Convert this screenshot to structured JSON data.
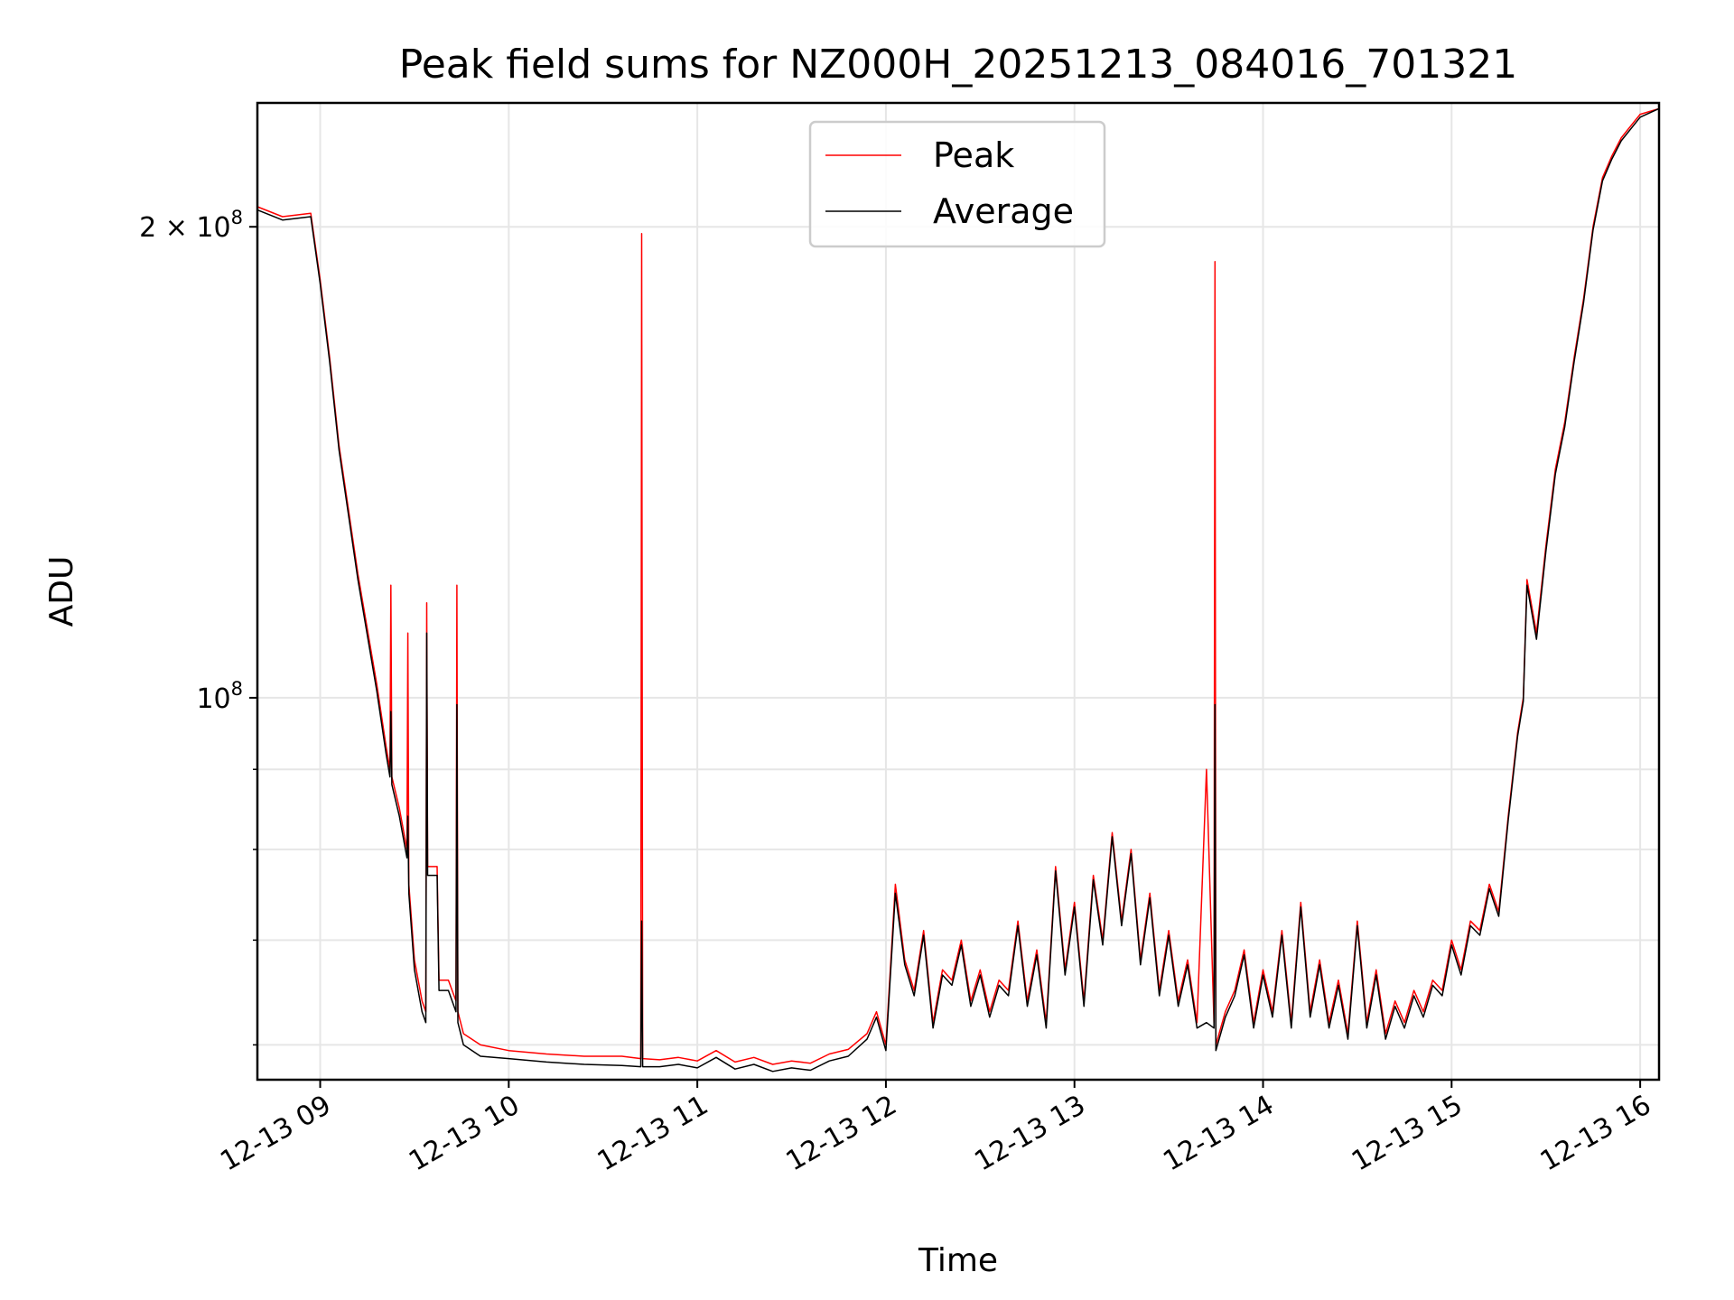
{
  "chart_data": {
    "type": "line",
    "title": "Peak field sums for NZ000H_20251213_084016_701321",
    "xlabel": "Time",
    "ylabel": "ADU",
    "yscale": "log",
    "ylim": [
      57000000,
      240000000
    ],
    "xlim": [
      8.667,
      16.1
    ],
    "grid": true,
    "legend_position": "top-center",
    "x_ticks": [
      {
        "value": 9,
        "label": "12-13 09"
      },
      {
        "value": 10,
        "label": "12-13 10"
      },
      {
        "value": 11,
        "label": "12-13 11"
      },
      {
        "value": 12,
        "label": "12-13 12"
      },
      {
        "value": 13,
        "label": "12-13 13"
      },
      {
        "value": 14,
        "label": "12-13 14"
      },
      {
        "value": 15,
        "label": "12-13 15"
      },
      {
        "value": 16,
        "label": "12-13 16"
      }
    ],
    "y_ticks": [
      {
        "value": 200000000,
        "base": "2 × 10",
        "exp": "8"
      },
      {
        "value": 100000000,
        "base": "10",
        "exp": "8"
      }
    ],
    "y_minor_ticks": [
      60000000,
      70000000,
      80000000,
      90000000
    ],
    "series": [
      {
        "name": "Peak",
        "color": "#ff0000",
        "x": [
          8.667,
          8.8,
          8.95,
          9.0,
          9.05,
          9.1,
          9.2,
          9.3,
          9.35,
          9.37,
          9.375,
          9.38,
          9.42,
          9.46,
          9.465,
          9.47,
          9.5,
          9.54,
          9.56,
          9.565,
          9.57,
          9.62,
          9.63,
          9.68,
          9.72,
          9.725,
          9.73,
          9.76,
          9.85,
          10.0,
          10.2,
          10.4,
          10.6,
          10.7,
          10.705,
          10.71,
          10.8,
          10.9,
          11.0,
          11.1,
          11.2,
          11.3,
          11.4,
          11.5,
          11.6,
          11.7,
          11.8,
          11.9,
          11.95,
          12.0,
          12.05,
          12.1,
          12.15,
          12.2,
          12.25,
          12.3,
          12.35,
          12.4,
          12.45,
          12.5,
          12.55,
          12.6,
          12.65,
          12.7,
          12.75,
          12.8,
          12.85,
          12.9,
          12.95,
          13.0,
          13.05,
          13.1,
          13.15,
          13.2,
          13.25,
          13.3,
          13.35,
          13.4,
          13.45,
          13.5,
          13.55,
          13.6,
          13.65,
          13.7,
          13.74,
          13.745,
          13.75,
          13.8,
          13.85,
          13.9,
          13.95,
          14.0,
          14.05,
          14.1,
          14.15,
          14.2,
          14.25,
          14.3,
          14.35,
          14.4,
          14.45,
          14.5,
          14.55,
          14.6,
          14.65,
          14.7,
          14.75,
          14.8,
          14.85,
          14.9,
          14.95,
          15.0,
          15.05,
          15.1,
          15.15,
          15.2,
          15.25,
          15.3,
          15.35,
          15.38,
          15.4,
          15.45,
          15.5,
          15.55,
          15.6,
          15.65,
          15.7,
          15.75,
          15.8,
          15.85,
          15.9,
          15.95,
          16.0,
          16.1
        ],
        "values": [
          206000000,
          203000000,
          204000000,
          185000000,
          165000000,
          145000000,
          120000000,
          102000000,
          93000000,
          90000000,
          118000000,
          89000000,
          85000000,
          80000000,
          110000000,
          76000000,
          68000000,
          64000000,
          63000000,
          115000000,
          78000000,
          78000000,
          66000000,
          66000000,
          64000000,
          118000000,
          63000000,
          61000000,
          60000000,
          59500000,
          59200000,
          59000000,
          59000000,
          58800000,
          198000000,
          58800000,
          58700000,
          58900000,
          58600000,
          59500000,
          58500000,
          58900000,
          58300000,
          58600000,
          58400000,
          59200000,
          59600000,
          61000000,
          63000000,
          60000000,
          76000000,
          68000000,
          65000000,
          71000000,
          62000000,
          67000000,
          66000000,
          70000000,
          64000000,
          67000000,
          63000000,
          66000000,
          65000000,
          72000000,
          64000000,
          69000000,
          62000000,
          78000000,
          67000000,
          74000000,
          64000000,
          77000000,
          70000000,
          82000000,
          72000000,
          80000000,
          68000000,
          75000000,
          65000000,
          71000000,
          64000000,
          68000000,
          62000000,
          90000000,
          62000000,
          190000000,
          60000000,
          63000000,
          65000000,
          69000000,
          62000000,
          67000000,
          63000000,
          71000000,
          62000000,
          74000000,
          63000000,
          68000000,
          62000000,
          66000000,
          61000000,
          72000000,
          62000000,
          67000000,
          61000000,
          64000000,
          62000000,
          65000000,
          63000000,
          66000000,
          65000000,
          70000000,
          67000000,
          72000000,
          71000000,
          76000000,
          73000000,
          84000000,
          95000000,
          100000000,
          119000000,
          110000000,
          125000000,
          140000000,
          150000000,
          165000000,
          180000000,
          200000000,
          215000000,
          222000000,
          228000000,
          232000000,
          236000000,
          238000000
        ]
      },
      {
        "name": "Average",
        "color": "#000000",
        "x": [
          8.667,
          8.8,
          8.95,
          9.0,
          9.05,
          9.1,
          9.2,
          9.3,
          9.35,
          9.37,
          9.375,
          9.38,
          9.42,
          9.46,
          9.465,
          9.47,
          9.5,
          9.54,
          9.56,
          9.565,
          9.57,
          9.62,
          9.63,
          9.68,
          9.72,
          9.725,
          9.73,
          9.76,
          9.85,
          10.0,
          10.2,
          10.4,
          10.6,
          10.7,
          10.705,
          10.71,
          10.8,
          10.9,
          11.0,
          11.1,
          11.2,
          11.3,
          11.4,
          11.5,
          11.6,
          11.7,
          11.8,
          11.9,
          11.95,
          12.0,
          12.05,
          12.1,
          12.15,
          12.2,
          12.25,
          12.3,
          12.35,
          12.4,
          12.45,
          12.5,
          12.55,
          12.6,
          12.65,
          12.7,
          12.75,
          12.8,
          12.85,
          12.9,
          12.95,
          13.0,
          13.05,
          13.1,
          13.15,
          13.2,
          13.25,
          13.3,
          13.35,
          13.4,
          13.45,
          13.5,
          13.55,
          13.6,
          13.65,
          13.7,
          13.74,
          13.745,
          13.75,
          13.8,
          13.85,
          13.9,
          13.95,
          14.0,
          14.05,
          14.1,
          14.15,
          14.2,
          14.25,
          14.3,
          14.35,
          14.4,
          14.45,
          14.5,
          14.55,
          14.6,
          14.65,
          14.7,
          14.75,
          14.8,
          14.85,
          14.9,
          14.95,
          15.0,
          15.05,
          15.1,
          15.15,
          15.2,
          15.25,
          15.3,
          15.35,
          15.38,
          15.4,
          15.45,
          15.5,
          15.55,
          15.6,
          15.65,
          15.7,
          15.75,
          15.8,
          15.85,
          15.9,
          15.95,
          16.0,
          16.1
        ],
        "values": [
          205000000,
          202000000,
          203000000,
          184000000,
          164000000,
          144000000,
          119000000,
          101000000,
          92000000,
          89000000,
          98000000,
          88000000,
          84000000,
          79000000,
          84000000,
          75000000,
          67000000,
          63000000,
          62000000,
          110000000,
          77000000,
          77000000,
          65000000,
          65000000,
          63000000,
          99000000,
          62000000,
          60000000,
          59000000,
          58800000,
          58500000,
          58300000,
          58200000,
          58100000,
          72000000,
          58100000,
          58100000,
          58300000,
          58000000,
          58900000,
          57900000,
          58300000,
          57700000,
          58000000,
          57800000,
          58600000,
          59000000,
          60500000,
          62500000,
          59500000,
          75000000,
          67500000,
          64500000,
          70500000,
          61500000,
          66500000,
          65500000,
          69500000,
          63500000,
          66500000,
          62500000,
          65500000,
          64500000,
          71500000,
          63500000,
          68500000,
          61500000,
          77500000,
          66500000,
          73500000,
          63500000,
          76500000,
          69500000,
          81500000,
          71500000,
          79500000,
          67500000,
          74500000,
          64500000,
          70500000,
          63500000,
          67500000,
          61500000,
          62000000,
          61500000,
          99000000,
          59500000,
          62500000,
          64500000,
          68500000,
          61500000,
          66500000,
          62500000,
          70500000,
          61500000,
          73500000,
          62500000,
          67500000,
          61500000,
          65500000,
          60500000,
          71500000,
          61500000,
          66500000,
          60500000,
          63500000,
          61500000,
          64500000,
          62500000,
          65500000,
          64500000,
          69500000,
          66500000,
          71500000,
          70500000,
          75500000,
          72500000,
          83500000,
          94500000,
          99500000,
          118000000,
          109000000,
          124000000,
          139000000,
          149000000,
          164000000,
          179000000,
          199000000,
          214000000,
          221000000,
          227000000,
          231000000,
          235000000,
          238000000
        ]
      }
    ]
  }
}
